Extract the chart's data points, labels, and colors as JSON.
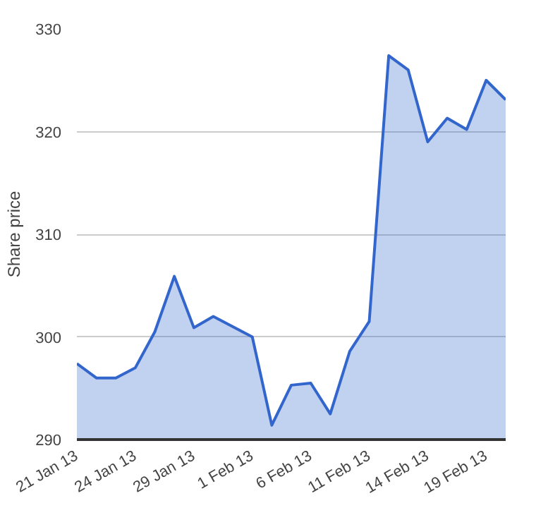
{
  "chart_data": {
    "type": "area",
    "ylabel": "Share price",
    "categories": [
      "21 Jan 13",
      null,
      null,
      "24 Jan 13",
      null,
      null,
      "29 Jan 13",
      null,
      null,
      "1 Feb 13",
      null,
      null,
      "6 Feb 13",
      null,
      null,
      "11 Feb 13",
      null,
      null,
      "14 Feb 13",
      null,
      null,
      "19 Feb 13",
      null
    ],
    "series": [
      {
        "color": "#3366cc",
        "values": [
          297.4,
          296,
          296,
          297,
          300.5,
          305.9,
          300.9,
          302,
          301,
          300,
          291.4,
          295.3,
          295.5,
          292.5,
          298.6,
          301.5,
          327.4,
          326,
          319,
          321.3,
          320.2,
          325,
          323.1
        ]
      }
    ],
    "ylim": [
      290,
      330
    ],
    "yticks": [
      290,
      300,
      310,
      320,
      330
    ],
    "grid": "y"
  }
}
